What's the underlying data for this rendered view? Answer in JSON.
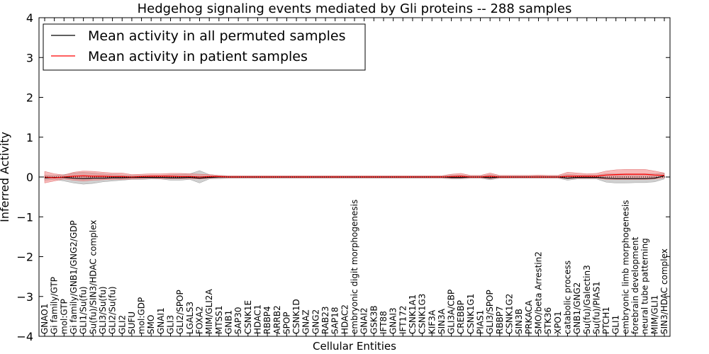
{
  "chart_data": {
    "type": "line",
    "title": "Hedgehog signaling events mediated by Gli proteins -- 288 samples",
    "xlabel": "Cellular Entities",
    "ylabel": "Inferred Activity",
    "ylim": [
      -4,
      4
    ],
    "yticks": [
      4,
      3,
      2,
      1,
      0,
      -1,
      -2,
      -3,
      -4
    ],
    "grid": false,
    "legend_position": "top-left",
    "categories": [
      "GNAO1",
      "Gi family/GTP",
      "mol:GTP",
      "Gi family/GNB1/GNG2/GDP",
      "GLI1/Su(fu)",
      "Su(fu)/SIN3/HDAC complex",
      "GLI3/Su(fu)",
      "GLI2/Su(fu)",
      "GLI2",
      "SUFU",
      "mol:GDP",
      "SMO",
      "GNAI1",
      "GLI3",
      "GLI2/SPOP",
      "LGALS3",
      "FOXA2",
      "MIM/GLI2A",
      "MTSS1",
      "GNB1",
      "SAP30",
      "CSNK1E",
      "HDAC1",
      "RBBP4",
      "ARRB2",
      "SPOP",
      "CSNK1D",
      "GNAZ",
      "GNG2",
      "RAB23",
      "SAP18",
      "HDAC2",
      "embryonic digit morphogenesis",
      "GNAI2",
      "GSK3B",
      "IFT88",
      "GNAI3",
      "IFT172",
      "CSNK1A1",
      "CSNK1G3",
      "KIF3A",
      "SIN3A",
      "GLI3A/CBP",
      "CREBBP",
      "CSNK1G1",
      "PIAS1",
      "GLI3/SPOP",
      "RBBP7",
      "CSNK1G2",
      "SIN3B",
      "PRKACA",
      "SMO/beta Arrestin2",
      "STK36",
      "XPO1",
      "catabolic process",
      "GNB1/GNG2",
      "Su(fu)/Galectin3",
      "Su(fu)/PIAS1",
      "PTCH1",
      "GLI1",
      "embryonic limb morphogenesis",
      "forebrain development",
      "neural tube patterning",
      "MIM/GLI1",
      "SIN3/HDAC complex"
    ],
    "series": [
      {
        "name": "Mean activity in all permuted samples",
        "color": "#000000",
        "values": [
          -0.02,
          -0.01,
          -0.01,
          -0.03,
          -0.04,
          -0.03,
          -0.03,
          -0.02,
          -0.02,
          -0.01,
          -0.01,
          -0.01,
          -0.01,
          -0.02,
          -0.02,
          -0.01,
          -0.03,
          -0.01,
          0.0,
          0.0,
          0.0,
          0.0,
          0.0,
          0.0,
          0.0,
          0.0,
          0.0,
          0.0,
          0.0,
          0.0,
          0.0,
          0.0,
          0.0,
          0.0,
          0.0,
          0.0,
          0.0,
          0.0,
          0.0,
          0.0,
          0.0,
          0.0,
          -0.01,
          -0.01,
          0.0,
          0.0,
          -0.02,
          0.0,
          0.0,
          0.0,
          0.0,
          0.0,
          0.0,
          0.0,
          -0.03,
          -0.01,
          -0.01,
          -0.01,
          -0.03,
          -0.04,
          -0.04,
          -0.04,
          -0.04,
          -0.03,
          0.03
        ],
        "band_low": [
          -0.08,
          -0.06,
          -0.1,
          -0.15,
          -0.18,
          -0.16,
          -0.12,
          -0.1,
          -0.08,
          -0.06,
          -0.06,
          -0.05,
          -0.05,
          -0.08,
          -0.08,
          -0.06,
          -0.15,
          -0.05,
          -0.04,
          -0.03,
          -0.03,
          -0.03,
          -0.03,
          -0.03,
          -0.03,
          -0.03,
          -0.03,
          -0.03,
          -0.03,
          -0.03,
          -0.03,
          -0.03,
          -0.03,
          -0.03,
          -0.03,
          -0.03,
          -0.03,
          -0.03,
          -0.03,
          -0.03,
          -0.03,
          -0.03,
          -0.05,
          -0.05,
          -0.03,
          -0.03,
          -0.07,
          -0.03,
          -0.03,
          -0.03,
          -0.03,
          -0.03,
          -0.03,
          -0.03,
          -0.08,
          -0.05,
          -0.05,
          -0.05,
          -0.13,
          -0.15,
          -0.15,
          -0.14,
          -0.14,
          -0.12,
          -0.05
        ],
        "band_high": [
          0.05,
          0.04,
          0.06,
          0.1,
          0.12,
          0.1,
          0.08,
          0.06,
          0.05,
          0.04,
          0.04,
          0.04,
          0.04,
          0.06,
          0.07,
          0.08,
          0.16,
          0.06,
          0.04,
          0.03,
          0.03,
          0.03,
          0.03,
          0.03,
          0.03,
          0.03,
          0.03,
          0.03,
          0.03,
          0.03,
          0.03,
          0.03,
          0.03,
          0.03,
          0.03,
          0.03,
          0.03,
          0.03,
          0.03,
          0.03,
          0.03,
          0.03,
          0.05,
          0.05,
          0.03,
          0.03,
          0.06,
          0.03,
          0.03,
          0.03,
          0.03,
          0.03,
          0.03,
          0.03,
          0.07,
          0.05,
          0.05,
          0.05,
          0.08,
          0.08,
          0.08,
          0.08,
          0.08,
          0.08,
          0.1
        ]
      },
      {
        "name": "Mean activity in patient samples",
        "color": "#ff0000",
        "values": [
          0.0,
          -0.02,
          0.0,
          0.02,
          0.03,
          0.02,
          0.02,
          0.01,
          0.01,
          0.0,
          0.01,
          0.02,
          0.02,
          0.02,
          0.01,
          0.01,
          0.0,
          0.01,
          0.01,
          0.0,
          0.0,
          0.0,
          0.0,
          0.0,
          0.0,
          0.0,
          0.0,
          0.0,
          0.0,
          0.0,
          0.0,
          0.0,
          0.0,
          0.0,
          0.0,
          0.0,
          0.0,
          0.0,
          0.0,
          0.0,
          0.0,
          0.0,
          0.01,
          0.02,
          0.0,
          0.0,
          0.02,
          0.0,
          0.0,
          0.0,
          0.0,
          0.0,
          0.0,
          0.0,
          0.02,
          0.02,
          0.02,
          0.02,
          0.05,
          0.06,
          0.07,
          0.07,
          0.07,
          0.05,
          0.04
        ],
        "band_low": [
          -0.15,
          -0.1,
          -0.05,
          -0.08,
          -0.1,
          -0.08,
          -0.07,
          -0.06,
          -0.06,
          -0.05,
          -0.04,
          -0.03,
          -0.04,
          -0.04,
          -0.04,
          -0.04,
          -0.05,
          -0.03,
          -0.02,
          -0.02,
          -0.02,
          -0.02,
          -0.02,
          -0.02,
          -0.02,
          -0.02,
          -0.02,
          -0.02,
          -0.02,
          -0.02,
          -0.02,
          -0.02,
          -0.02,
          -0.02,
          -0.02,
          -0.02,
          -0.02,
          -0.02,
          -0.02,
          -0.02,
          -0.02,
          -0.02,
          -0.03,
          -0.03,
          -0.02,
          -0.02,
          -0.04,
          -0.02,
          -0.02,
          -0.02,
          -0.02,
          -0.02,
          -0.02,
          -0.02,
          -0.04,
          -0.03,
          -0.03,
          -0.03,
          -0.06,
          -0.06,
          -0.06,
          -0.06,
          -0.06,
          -0.05,
          -0.02
        ],
        "band_high": [
          0.14,
          0.08,
          0.05,
          0.12,
          0.15,
          0.14,
          0.12,
          0.1,
          0.1,
          0.06,
          0.07,
          0.08,
          0.08,
          0.09,
          0.09,
          0.08,
          0.07,
          0.06,
          0.04,
          0.03,
          0.03,
          0.03,
          0.03,
          0.03,
          0.03,
          0.03,
          0.03,
          0.03,
          0.03,
          0.03,
          0.03,
          0.03,
          0.03,
          0.03,
          0.03,
          0.03,
          0.03,
          0.03,
          0.03,
          0.03,
          0.03,
          0.03,
          0.07,
          0.09,
          0.04,
          0.04,
          0.1,
          0.04,
          0.04,
          0.04,
          0.04,
          0.05,
          0.04,
          0.04,
          0.12,
          0.1,
          0.08,
          0.09,
          0.15,
          0.18,
          0.19,
          0.19,
          0.19,
          0.15,
          0.1
        ]
      }
    ]
  },
  "colors": {
    "background": "#ffffff",
    "axis": "#000000",
    "permuted_line": "#000000",
    "patient_line": "#ff0000",
    "patient_band": "#f08080",
    "permuted_band": "#b0b0b0"
  }
}
